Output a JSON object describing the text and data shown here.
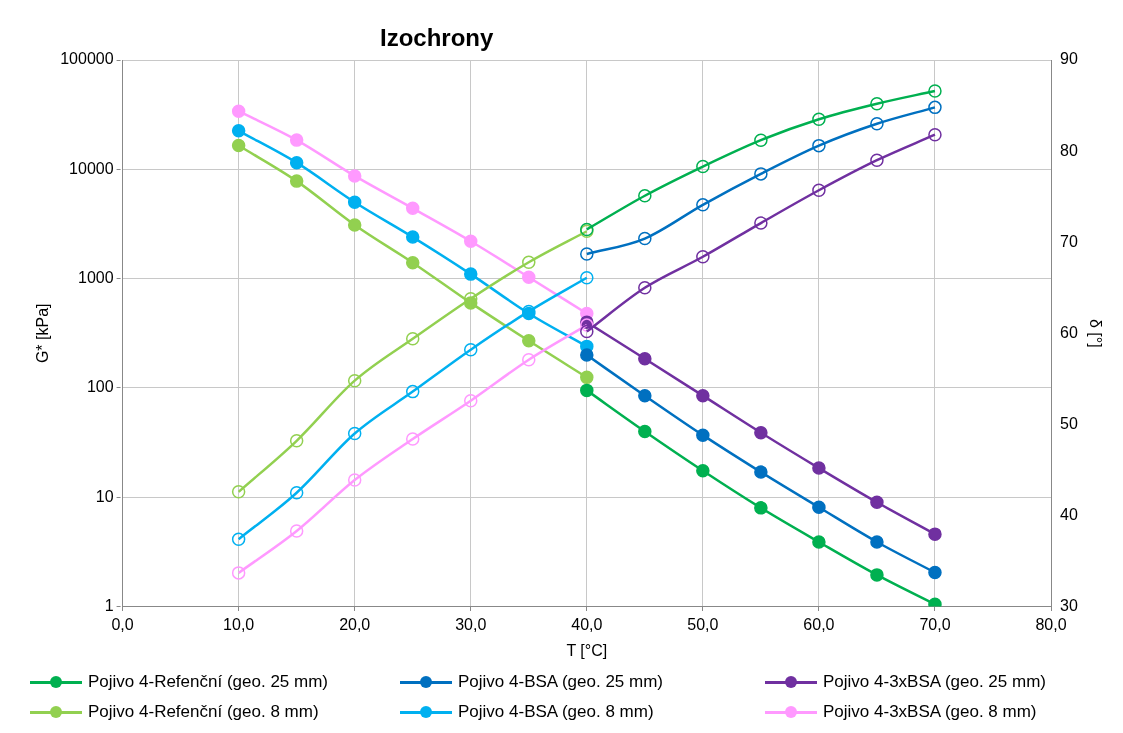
{
  "chart_data": {
    "type": "line",
    "title": "Izochrony",
    "xlabel": "T [°C]",
    "ylabel": "G* [kPa]",
    "y2label": "δ [°]",
    "xlim": [
      0,
      80
    ],
    "xticks": [
      {
        "value": 0,
        "label": "0,0"
      },
      {
        "value": 10,
        "label": "10,0"
      },
      {
        "value": 20,
        "label": "20,0"
      },
      {
        "value": 30,
        "label": "30,0"
      },
      {
        "value": 40,
        "label": "40,0"
      },
      {
        "value": 50,
        "label": "50,0"
      },
      {
        "value": 60,
        "label": "60,0"
      },
      {
        "value": 70,
        "label": "70,0"
      },
      {
        "value": 80,
        "label": "80,0"
      }
    ],
    "ylim": [
      1,
      100000
    ],
    "yticks": [
      1,
      10,
      100,
      1000,
      10000,
      100000
    ],
    "y2lim": [
      30,
      90
    ],
    "y2ticks": [
      30,
      40,
      50,
      60,
      70,
      80,
      90
    ],
    "log": "y",
    "grid": true,
    "legend": "bottom",
    "marker": "circle",
    "series": [
      {
        "name": "Pojivo 4-Refenční (geo. 25 mm)",
        "color": "#00b050",
        "x": [
          40,
          45,
          50,
          55,
          60,
          65,
          70
        ],
        "values": [
          95,
          40,
          17.5,
          8,
          3.9,
          1.95,
          1.05
        ]
      },
      {
        "name": "Pojivo 4-BSA (geo. 25 mm)",
        "color": "#0070c0",
        "x": [
          40,
          45,
          50,
          55,
          60,
          65,
          70
        ],
        "values": [
          200,
          85,
          37,
          17,
          8.1,
          3.9,
          2.05
        ]
      },
      {
        "name": "Pojivo 4-3xBSA (geo. 25 mm)",
        "color": "#7030a0",
        "x": [
          40,
          45,
          50,
          55,
          60,
          65,
          70
        ],
        "values": [
          400,
          185,
          85,
          39,
          18.5,
          9,
          4.6
        ]
      },
      {
        "name": "Pojivo 4-Refenční (geo. 8 mm)",
        "color": "#92d050",
        "x": [
          10,
          15,
          20,
          25,
          30,
          35,
          40
        ],
        "values": [
          16500,
          7800,
          3100,
          1400,
          600,
          270,
          125
        ]
      },
      {
        "name": "Pojivo 4-BSA (geo. 8 mm)",
        "color": "#00b0f0",
        "x": [
          10,
          15,
          20,
          25,
          30,
          35,
          40
        ],
        "values": [
          22500,
          11500,
          5000,
          2400,
          1100,
          480,
          240
        ]
      },
      {
        "name": "Pojivo 4-3xBSA (geo. 8 mm)",
        "color": "#ff99ff",
        "x": [
          10,
          15,
          20,
          25,
          30,
          35,
          40
        ],
        "values": [
          34000,
          18500,
          8700,
          4400,
          2200,
          1030,
          480
        ]
      },
      {
        "color": "#00b050",
        "axis": "y2",
        "x": [
          40,
          45,
          50,
          55,
          60,
          65,
          70
        ],
        "values": [
          71.4,
          75.1,
          78.3,
          81.2,
          83.5,
          85.2,
          86.6
        ]
      },
      {
        "color": "#0070c0",
        "axis": "y2",
        "x": [
          40,
          45,
          50,
          55,
          60,
          65,
          70
        ],
        "values": [
          68.7,
          70.4,
          74.1,
          77.5,
          80.6,
          83.0,
          84.8
        ]
      },
      {
        "color": "#7030a0",
        "axis": "y2",
        "x": [
          40,
          45,
          50,
          55,
          60,
          65,
          70
        ],
        "values": [
          60.2,
          65.0,
          68.4,
          72.1,
          75.7,
          79.0,
          81.8
        ]
      },
      {
        "color": "#92d050",
        "axis": "y2",
        "x": [
          10,
          15,
          20,
          25,
          30,
          35,
          40
        ],
        "values": [
          42.6,
          48.2,
          54.8,
          59.4,
          63.8,
          67.8,
          71.2
        ]
      },
      {
        "color": "#00b0f0",
        "axis": "y2",
        "x": [
          10,
          15,
          20,
          25,
          30,
          35,
          40
        ],
        "values": [
          37.4,
          42.5,
          49.0,
          53.6,
          58.2,
          62.4,
          66.1
        ]
      },
      {
        "color": "#ff99ff",
        "axis": "y2",
        "x": [
          10,
          15,
          20,
          25,
          30,
          35,
          40
        ],
        "values": [
          33.7,
          38.3,
          43.9,
          48.4,
          52.6,
          57.1,
          60.9
        ]
      }
    ]
  }
}
